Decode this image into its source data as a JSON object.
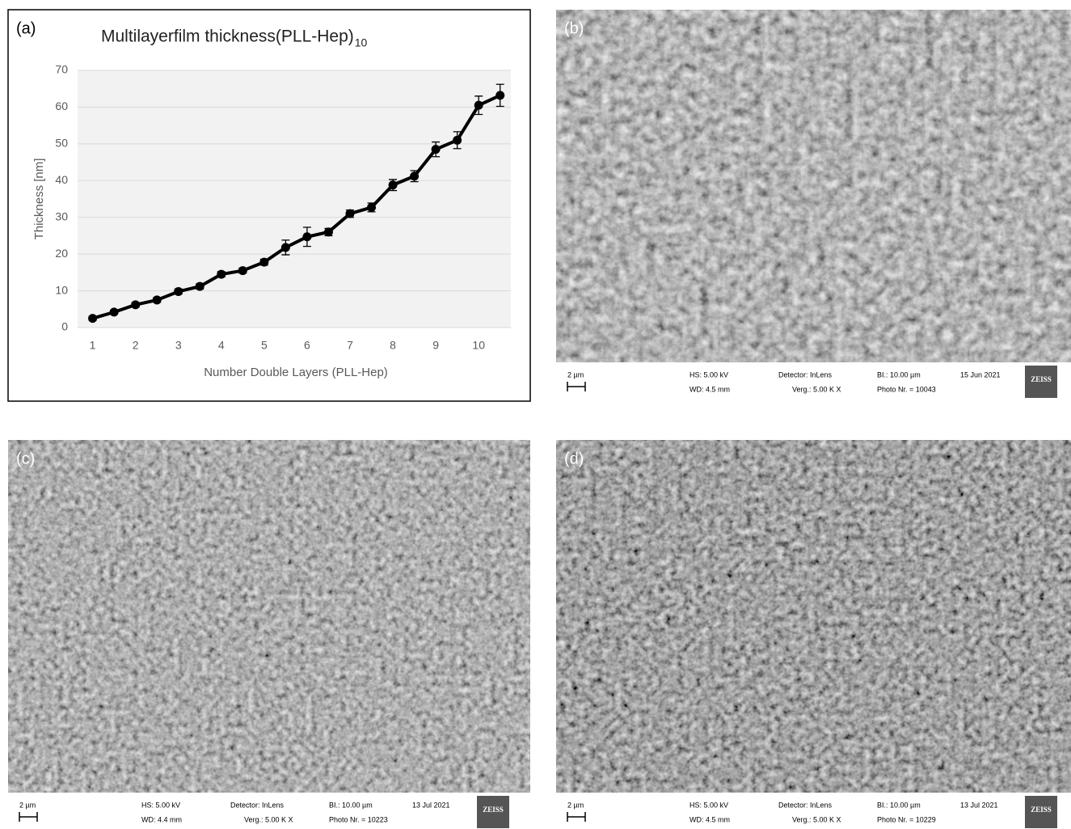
{
  "chart_data": {
    "type": "line",
    "title": "Multilayerfilm thickness(PLL-Hep)",
    "title_subscript": "10",
    "x_label": "Number  Double Layers (PLL-Hep)",
    "y_label": "Thickness [nm]",
    "x": [
      1,
      1.5,
      2,
      2.5,
      3,
      3.5,
      4,
      4.5,
      5,
      5.5,
      6,
      6.5,
      7,
      7.5,
      8,
      8.5,
      9,
      9.5,
      10,
      10.5
    ],
    "values": [
      2.5,
      4.2,
      6.2,
      7.5,
      9.8,
      11.2,
      14.5,
      15.5,
      17.8,
      21.8,
      24.7,
      26,
      31,
      32.7,
      38.8,
      41.2,
      48.5,
      51,
      60.5,
      63.2
    ],
    "errors": [
      0.5,
      0.5,
      0.6,
      0.6,
      0.7,
      0.7,
      0.7,
      0.7,
      0.8,
      2,
      2.6,
      1,
      1,
      1.2,
      1.5,
      1.5,
      2,
      2.3,
      2.5,
      3
    ],
    "color": "#000000",
    "xlim": [
      0.65,
      10.75
    ],
    "xticks": [
      1,
      2,
      3,
      4,
      5,
      6,
      7,
      8,
      9,
      10
    ],
    "ylim": [
      0,
      70
    ],
    "yticks": [
      0,
      10,
      20,
      30,
      40,
      50,
      60,
      70
    ],
    "grid": true
  },
  "panel_labels": [
    "(a)",
    "(b)",
    "(c)",
    "(d)"
  ],
  "micrographs": [
    {
      "scale": "2 µm",
      "hs": "HS: 5.00 kV",
      "wd": "WD: 4.5 mm",
      "detector": "Detector: InLens",
      "verg": "Verg.:  5.00 K X",
      "bi": "BI.: 10.00 µm",
      "photo": "Photo Nr. = 10043",
      "date": "15 Jun 2021",
      "logo": "ZEISS"
    },
    {
      "scale": "2 µm",
      "hs": "HS: 5.00 kV",
      "wd": "WD: 4.4 mm",
      "detector": "Detector: InLens",
      "verg": "Verg.:  5.00 K X",
      "bi": "BI.: 10.00 µm",
      "photo": "Photo Nr. = 10223",
      "date": "13 Jul 2021",
      "logo": "ZEISS"
    },
    {
      "scale": "2 µm",
      "hs": "HS: 5.00 kV",
      "wd": "WD: 4.5 mm",
      "detector": "Detector: InLens",
      "verg": "Verg.:  5.00 K X",
      "bi": "BI.: 10.00 µm",
      "photo": "Photo Nr. = 10229",
      "date": "13 Jul 2021",
      "logo": "ZEISS"
    }
  ]
}
